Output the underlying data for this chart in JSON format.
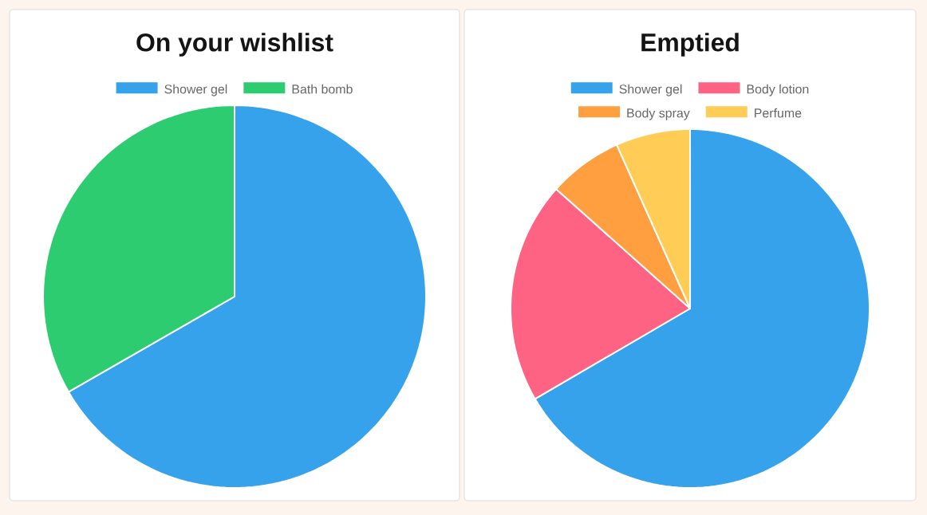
{
  "chart_data": [
    {
      "type": "pie",
      "title": "On your wishlist",
      "categories": [
        "Shower gel",
        "Bath bomb"
      ],
      "values": [
        66.7,
        33.3
      ],
      "colors": [
        "#36a2eb",
        "#2ecc71"
      ],
      "legend": "top"
    },
    {
      "type": "pie",
      "title": "Emptied",
      "categories": [
        "Shower gel",
        "Body lotion",
        "Body spray",
        "Perfume"
      ],
      "values": [
        66.6,
        20,
        6.7,
        6.7
      ],
      "colors": [
        "#36a2eb",
        "#ff6384",
        "#ff9f40",
        "#ffcd56"
      ],
      "legend": "top"
    }
  ]
}
